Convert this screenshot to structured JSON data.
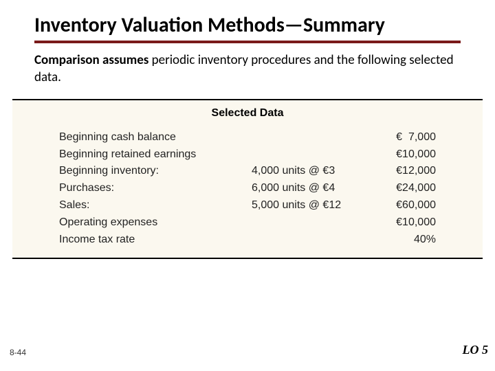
{
  "title": "Inventory Valuation Methods—Summary",
  "title_underline_color": "#7a1a1a",
  "subtitle_bold": "Comparison assumes",
  "subtitle_rest": " periodic inventory procedures and the following selected data.",
  "panel": {
    "background_color": "#fbf8ef",
    "border_color": "#000000",
    "heading": "Selected Data",
    "rows": [
      {
        "label": "Beginning cash balance",
        "mid": "",
        "value": "€  7,000"
      },
      {
        "label": "Beginning retained earnings",
        "mid": "",
        "value": "€10,000"
      },
      {
        "label": "Beginning inventory:",
        "mid": "4,000 units @ €3",
        "value": "€12,000"
      },
      {
        "label": "Purchases:",
        "mid": "6,000 units @ €4",
        "value": "€24,000"
      },
      {
        "label": "Sales:",
        "mid": "5,000 units @ €12",
        "value": "€60,000"
      },
      {
        "label": "Operating expenses",
        "mid": "",
        "value": "€10,000"
      },
      {
        "label": "Income tax rate",
        "mid": "",
        "value": "40%"
      }
    ],
    "label_fontsize": 16,
    "font_family": "Arial"
  },
  "footer": {
    "page_number": "8-44",
    "lo": "LO 5"
  },
  "typography": {
    "title_fontsize": 30,
    "title_weight": 700,
    "subtitle_fontsize": 19,
    "heading_fontsize": 16,
    "footer_left_fontsize": 12,
    "footer_right_fontsize": 18
  },
  "colors": {
    "page_bg": "#ffffff",
    "text": "#000000",
    "row_text": "#222222"
  }
}
